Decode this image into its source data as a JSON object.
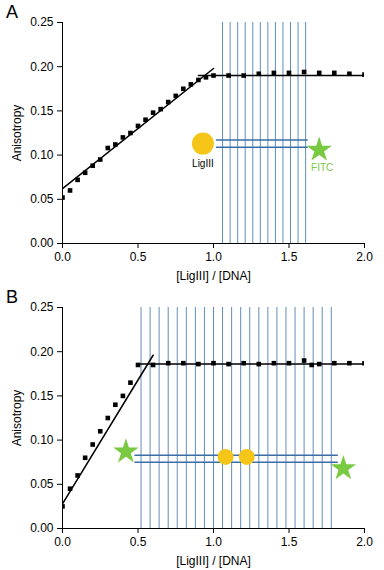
{
  "chart_data": [
    {
      "type": "scatter",
      "title": "A",
      "x_label": "[LigIII] / [DNA]",
      "y_label": "Anisotropy",
      "marker": "square",
      "color": "#000000",
      "x": [
        0,
        0.05,
        0.1,
        0.15,
        0.2,
        0.25,
        0.3,
        0.35,
        0.4,
        0.45,
        0.5,
        0.55,
        0.6,
        0.65,
        0.7,
        0.75,
        0.8,
        0.85,
        0.9,
        0.95,
        1.0,
        1.1,
        1.2,
        1.3,
        1.4,
        1.5,
        1.6,
        1.7,
        1.8,
        1.9,
        2.0
      ],
      "values": [
        0.052,
        0.06,
        0.072,
        0.08,
        0.088,
        0.095,
        0.108,
        0.112,
        0.12,
        0.125,
        0.133,
        0.14,
        0.148,
        0.152,
        0.16,
        0.167,
        0.175,
        0.18,
        0.185,
        0.188,
        0.19,
        0.19,
        0.19,
        0.192,
        0.193,
        0.193,
        0.194,
        0.193,
        0.193,
        0.192,
        0.191
      ],
      "fit_lines": [
        {
          "x": [
            0,
            1.0
          ],
          "values": [
            0.062,
            0.198
          ],
          "line_style": "solid"
        },
        {
          "x": [
            0.9,
            2.0
          ],
          "values": [
            0.19,
            0.19
          ],
          "line_style": "solid"
        }
      ],
      "annotations": [
        "LigIII",
        "FITC"
      ],
      "xlim": [
        0,
        2
      ],
      "ylim": [
        0,
        0.25
      ],
      "xticks": [
        {
          "value": 0,
          "label": "0.0"
        },
        {
          "value": 0.5,
          "label": "0.5"
        },
        {
          "value": 1,
          "label": "1.0"
        },
        {
          "value": 1.5,
          "label": "1.5"
        },
        {
          "value": 2,
          "label": "2.0"
        }
      ],
      "yticks": [
        {
          "value": 0,
          "label": "0.00"
        },
        {
          "value": 0.05,
          "label": "0.05"
        },
        {
          "value": 0.1,
          "label": "0.10"
        },
        {
          "value": 0.15,
          "label": "0.15"
        },
        {
          "value": 0.2,
          "label": "0.20"
        },
        {
          "value": 0.25,
          "label": "0.25"
        }
      ],
      "grid": false
    },
    {
      "type": "scatter",
      "title": "B",
      "x_label": "[LigIII] / [DNA]",
      "y_label": "Anisotropy",
      "marker": "square",
      "color": "#000000",
      "x": [
        0,
        0.05,
        0.1,
        0.15,
        0.2,
        0.25,
        0.3,
        0.35,
        0.4,
        0.45,
        0.5,
        0.6,
        0.7,
        0.8,
        0.9,
        1.0,
        1.1,
        1.2,
        1.3,
        1.4,
        1.5,
        1.6,
        1.65,
        1.7,
        1.8,
        1.9,
        2.0
      ],
      "values": [
        0.025,
        0.045,
        0.06,
        0.08,
        0.095,
        0.11,
        0.125,
        0.14,
        0.15,
        0.165,
        0.185,
        0.185,
        0.187,
        0.187,
        0.186,
        0.187,
        0.186,
        0.187,
        0.186,
        0.187,
        0.187,
        0.19,
        0.185,
        0.186,
        0.187,
        0.187,
        0.187
      ],
      "fit_lines": [
        {
          "x": [
            0,
            0.6
          ],
          "values": [
            0.028,
            0.196
          ],
          "line_style": "solid"
        },
        {
          "x": [
            0.5,
            2.0
          ],
          "values": [
            0.186,
            0.186
          ],
          "line_style": "solid"
        }
      ],
      "annotations": [],
      "xlim": [
        0,
        2
      ],
      "ylim": [
        0,
        0.25
      ],
      "xticks": [
        {
          "value": 0,
          "label": "0.0"
        },
        {
          "value": 0.5,
          "label": "0.5"
        },
        {
          "value": 1,
          "label": "1.0"
        },
        {
          "value": 1.5,
          "label": "1.5"
        },
        {
          "value": 2,
          "label": "2.0"
        }
      ],
      "yticks": [
        {
          "value": 0,
          "label": "0.00"
        },
        {
          "value": 0.05,
          "label": "0.05"
        },
        {
          "value": 0.1,
          "label": "0.10"
        },
        {
          "value": 0.15,
          "label": "0.15"
        },
        {
          "value": 0.2,
          "label": "0.20"
        },
        {
          "value": 0.25,
          "label": "0.25"
        }
      ],
      "grid": false
    }
  ]
}
